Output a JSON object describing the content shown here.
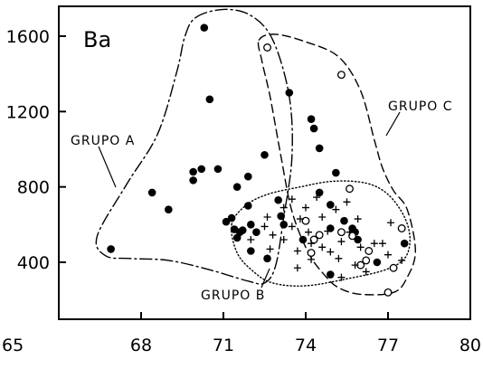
{
  "chart_data": {
    "type": "scatter",
    "title": "Ba",
    "xlim": [
      65,
      80
    ],
    "ylim": [
      200,
      1750
    ],
    "x_ticks": [
      "65",
      "68",
      "71",
      "74",
      "77",
      "80"
    ],
    "y_ticks": [
      "400",
      "800",
      "1200",
      "1600"
    ],
    "grid": false,
    "series": [
      {
        "name": "",
        "marker": "filled-circle",
        "points": [
          [
            66.9,
            470
          ],
          [
            68.4,
            770
          ],
          [
            69.0,
            680
          ],
          [
            69.9,
            880
          ],
          [
            69.9,
            835
          ],
          [
            70.2,
            895
          ],
          [
            70.3,
            1645
          ],
          [
            70.5,
            1265
          ],
          [
            70.8,
            895
          ],
          [
            71.1,
            615
          ],
          [
            71.3,
            635
          ],
          [
            71.4,
            575
          ],
          [
            71.5,
            530
          ],
          [
            71.5,
            800
          ],
          [
            71.6,
            560
          ],
          [
            71.7,
            570
          ],
          [
            71.9,
            700
          ],
          [
            71.9,
            855
          ],
          [
            72.0,
            600
          ],
          [
            72.0,
            460
          ],
          [
            72.2,
            560
          ],
          [
            72.5,
            970
          ],
          [
            72.6,
            420
          ],
          [
            73.0,
            730
          ],
          [
            73.1,
            645
          ],
          [
            73.2,
            600
          ],
          [
            73.4,
            1300
          ],
          [
            73.9,
            520
          ],
          [
            74.2,
            1160
          ],
          [
            74.3,
            1110
          ],
          [
            74.5,
            1005
          ],
          [
            74.5,
            770
          ],
          [
            74.9,
            705
          ],
          [
            74.9,
            580
          ],
          [
            74.9,
            335
          ],
          [
            75.1,
            875
          ],
          [
            75.4,
            620
          ],
          [
            75.7,
            580
          ],
          [
            75.8,
            560
          ],
          [
            75.9,
            520
          ],
          [
            76.6,
            400
          ],
          [
            77.6,
            500
          ]
        ]
      },
      {
        "name": "",
        "marker": "open-circle",
        "points": [
          [
            72.6,
            1540
          ],
          [
            75.3,
            1395
          ],
          [
            75.6,
            790
          ],
          [
            74.0,
            620
          ],
          [
            74.5,
            545
          ],
          [
            74.3,
            520
          ],
          [
            74.2,
            450
          ],
          [
            75.7,
            540
          ],
          [
            75.3,
            560
          ],
          [
            76.3,
            460
          ],
          [
            76.2,
            410
          ],
          [
            76.0,
            385
          ],
          [
            77.2,
            370
          ],
          [
            77.0,
            240
          ],
          [
            77.5,
            580
          ]
        ]
      },
      {
        "name": "",
        "marker": "plus",
        "points": [
          [
            72.0,
            520
          ],
          [
            72.5,
            590
          ],
          [
            72.6,
            640
          ],
          [
            72.7,
            470
          ],
          [
            72.8,
            545
          ],
          [
            73.2,
            690
          ],
          [
            73.2,
            520
          ],
          [
            73.5,
            735
          ],
          [
            73.5,
            590
          ],
          [
            73.7,
            460
          ],
          [
            73.7,
            370
          ],
          [
            73.8,
            630
          ],
          [
            74.0,
            690
          ],
          [
            74.1,
            560
          ],
          [
            74.2,
            500
          ],
          [
            74.2,
            415
          ],
          [
            74.4,
            745
          ],
          [
            74.6,
            640
          ],
          [
            74.6,
            480
          ],
          [
            74.8,
            565
          ],
          [
            74.9,
            455
          ],
          [
            75.1,
            680
          ],
          [
            75.2,
            420
          ],
          [
            75.3,
            510
          ],
          [
            75.3,
            320
          ],
          [
            75.5,
            720
          ],
          [
            75.6,
            560
          ],
          [
            75.8,
            385
          ],
          [
            75.9,
            630
          ],
          [
            76.0,
            480
          ],
          [
            76.2,
            350
          ],
          [
            76.5,
            500
          ],
          [
            76.8,
            500
          ],
          [
            77.0,
            440
          ],
          [
            77.1,
            610
          ],
          [
            77.5,
            410
          ]
        ]
      }
    ],
    "groups": [
      {
        "label": "GRUPO A",
        "style": "dash-dot",
        "outline": [
          [
            70.0,
            1700
          ],
          [
            71.0,
            1742
          ],
          [
            72.0,
            1710
          ],
          [
            72.8,
            1580
          ],
          [
            73.4,
            1280
          ],
          [
            73.5,
            960
          ],
          [
            73.2,
            640
          ],
          [
            72.9,
            380
          ],
          [
            72.5,
            290
          ],
          [
            71.9,
            300
          ],
          [
            70.5,
            360
          ],
          [
            69.0,
            410
          ],
          [
            67.6,
            420
          ],
          [
            66.7,
            435
          ],
          [
            66.4,
            540
          ],
          [
            67.5,
            820
          ],
          [
            68.6,
            1080
          ],
          [
            69.3,
            1410
          ],
          [
            69.6,
            1600
          ]
        ]
      },
      {
        "label": "GRUPO B",
        "style": "dotted",
        "outline": [
          [
            71.3,
            600
          ],
          [
            71.8,
            700
          ],
          [
            72.6,
            760
          ],
          [
            73.8,
            800
          ],
          [
            75.0,
            830
          ],
          [
            76.2,
            820
          ],
          [
            77.0,
            760
          ],
          [
            77.6,
            640
          ],
          [
            77.8,
            520
          ],
          [
            77.6,
            420
          ],
          [
            76.9,
            360
          ],
          [
            75.6,
            315
          ],
          [
            74.0,
            275
          ],
          [
            72.8,
            290
          ],
          [
            72.1,
            350
          ],
          [
            71.5,
            450
          ]
        ]
      },
      {
        "label": "GRUPO C",
        "style": "dashed",
        "outline": [
          [
            72.3,
            1580
          ],
          [
            72.9,
            1610
          ],
          [
            74.0,
            1570
          ],
          [
            75.2,
            1490
          ],
          [
            76.0,
            1310
          ],
          [
            76.5,
            1050
          ],
          [
            76.8,
            900
          ],
          [
            77.2,
            780
          ],
          [
            77.7,
            680
          ],
          [
            78.0,
            460
          ],
          [
            77.7,
            320
          ],
          [
            77.2,
            240
          ],
          [
            76.0,
            230
          ],
          [
            75.2,
            265
          ],
          [
            74.7,
            330
          ],
          [
            74.1,
            450
          ],
          [
            73.5,
            670
          ],
          [
            73.1,
            960
          ],
          [
            72.7,
            1280
          ],
          [
            72.4,
            1470
          ]
        ]
      }
    ]
  }
}
